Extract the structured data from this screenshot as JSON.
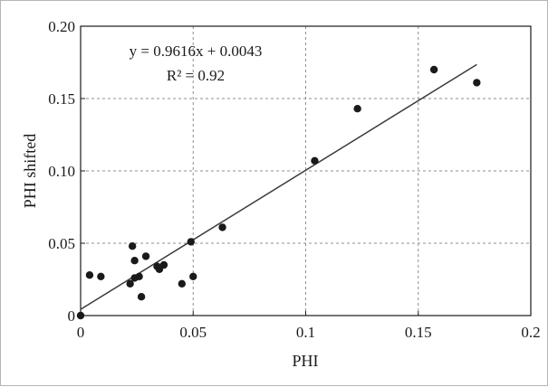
{
  "chart_data": {
    "type": "scatter",
    "title": "",
    "xlabel": "PHI",
    "ylabel": "PHI shifted",
    "xlim": [
      0,
      0.2
    ],
    "ylim": [
      0,
      0.2
    ],
    "x_ticks": [
      0,
      0.05,
      0.1,
      0.15,
      0.2
    ],
    "x_tick_labels": [
      "0",
      "0.05",
      "0.1",
      "0.15",
      "0.2"
    ],
    "y_ticks": [
      0,
      0.05,
      0.1,
      0.15,
      0.2
    ],
    "y_tick_labels": [
      "0",
      "0.05",
      "0.10",
      "0.15",
      "0.20"
    ],
    "grid": true,
    "grid_style": "dashed",
    "legend": "none",
    "colors": {
      "points": "#1a1a1a",
      "line": "#3a3a3a",
      "grid": "#8f8f8f",
      "axes": "#1a1a1a"
    },
    "points": [
      {
        "x": 0.0,
        "y": 0.0
      },
      {
        "x": 0.004,
        "y": 0.028
      },
      {
        "x": 0.009,
        "y": 0.027
      },
      {
        "x": 0.022,
        "y": 0.022
      },
      {
        "x": 0.023,
        "y": 0.048
      },
      {
        "x": 0.024,
        "y": 0.026
      },
      {
        "x": 0.024,
        "y": 0.038
      },
      {
        "x": 0.026,
        "y": 0.027
      },
      {
        "x": 0.027,
        "y": 0.013
      },
      {
        "x": 0.029,
        "y": 0.041
      },
      {
        "x": 0.034,
        "y": 0.034
      },
      {
        "x": 0.035,
        "y": 0.032
      },
      {
        "x": 0.037,
        "y": 0.035
      },
      {
        "x": 0.045,
        "y": 0.022
      },
      {
        "x": 0.049,
        "y": 0.051
      },
      {
        "x": 0.05,
        "y": 0.027
      },
      {
        "x": 0.063,
        "y": 0.061
      },
      {
        "x": 0.104,
        "y": 0.107
      },
      {
        "x": 0.123,
        "y": 0.143
      },
      {
        "x": 0.157,
        "y": 0.17
      },
      {
        "x": 0.176,
        "y": 0.161
      }
    ],
    "trendline": {
      "slope": 0.9616,
      "intercept": 0.0043,
      "x_range": [
        0,
        0.176
      ],
      "equation": "y = 0.9616x + 0.0043",
      "r_squared": "R² = 0.92"
    }
  }
}
